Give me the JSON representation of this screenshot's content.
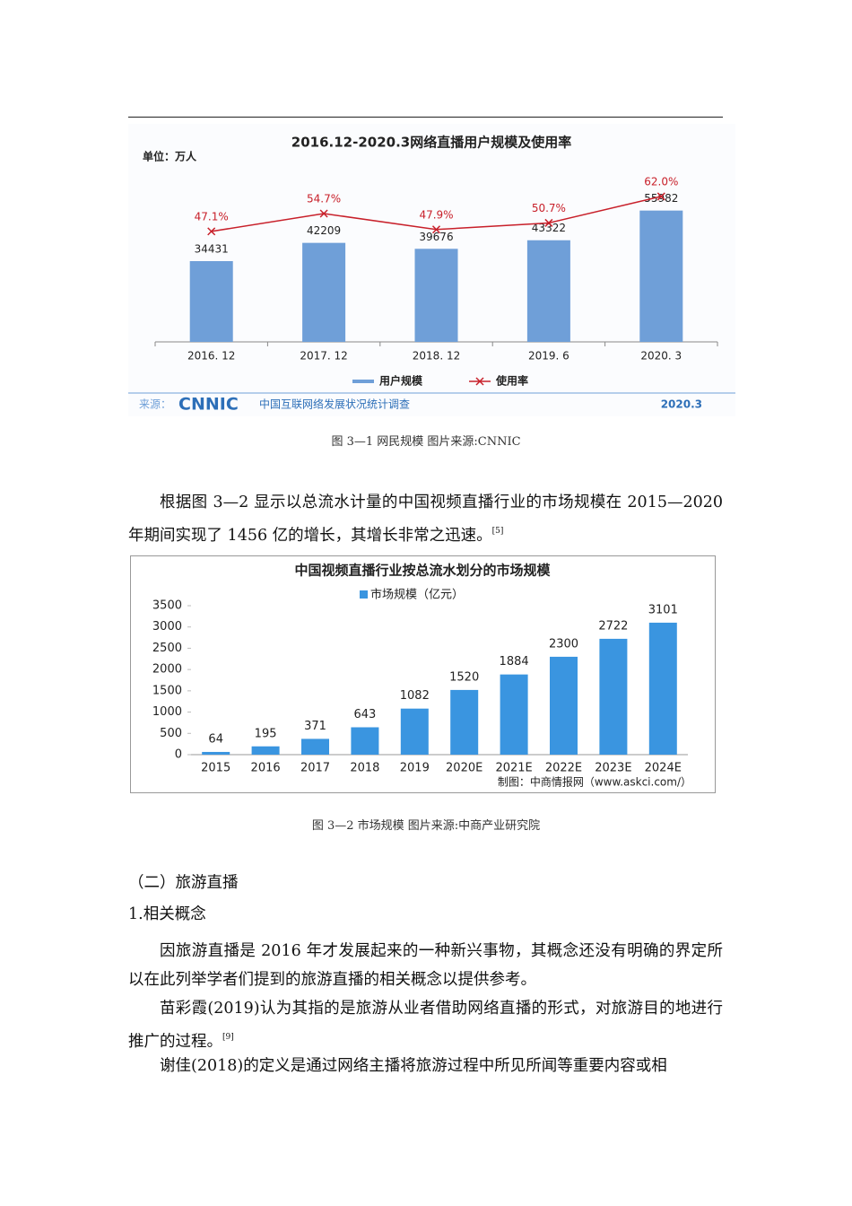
{
  "chart_data": [
    {
      "type": "bar",
      "title": "2016.12-2020.3网络直播用户规模及使用率",
      "unit_label": "单位：万人",
      "categories": [
        "2016. 12",
        "2017. 12",
        "2018. 12",
        "2019. 6",
        "2020. 3"
      ],
      "series": [
        {
          "name": "用户规模",
          "type": "bar",
          "color": "#6f9fd8",
          "values": [
            34431,
            42209,
            39676,
            43322,
            55982
          ]
        },
        {
          "name": "使用率",
          "type": "line",
          "axis": "y2",
          "color": "#c8202a",
          "values": [
            47.1,
            54.7,
            47.9,
            50.7,
            62.0
          ],
          "value_labels": [
            "47.1%",
            "54.7%",
            "47.9%",
            "50.7%",
            "62.0%"
          ]
        }
      ],
      "ylim": [
        0,
        70000
      ],
      "y2lim": [
        0,
        70
      ],
      "source": {
        "label": "来源：",
        "logo": "CNNIC",
        "text": "中国互联网络发展状况统计调查",
        "date": "2020.3"
      }
    },
    {
      "type": "bar",
      "title": "中国视频直播行业按总流水划分的市场规模",
      "categories": [
        "2015",
        "2016",
        "2017",
        "2018",
        "2019",
        "2020E",
        "2021E",
        "2022E",
        "2023E",
        "2024E"
      ],
      "series": [
        {
          "name": "市场规模（亿元）",
          "type": "bar",
          "color": "#3a95e0",
          "values": [
            64,
            195,
            371,
            643,
            1082,
            1520,
            1884,
            2300,
            2722,
            3101
          ]
        }
      ],
      "ylim": [
        0,
        3500
      ],
      "yticks": [
        0,
        500,
        1000,
        1500,
        2000,
        2500,
        3000,
        3500
      ],
      "credit": "制图：中商情报网（www.askci.com/）"
    }
  ],
  "captions": [
    "图 3—1 网民规模  图片来源:CNNIC",
    "图 3—2 市场规模  图片来源:中商产业研究院"
  ],
  "paragraphs": [
    {
      "text": "根据图 3—2 显示以总流水计量的中国视频直播行业的市场规模在 2015—2020 年期间实现了 1456 亿的增长，其增长非常之迅速。",
      "ref": "[5]"
    },
    {
      "text": "因旅游直播是 2016 年才发展起来的一种新兴事物，其概念还没有明确的界定所以在此列举学者们提到的旅游直播的相关概念以提供参考。"
    },
    {
      "text": "苗彩霞(2019)认为其指的是旅游从业者借助网络直播的形式，对旅游目的地进行推广的过程。",
      "ref": "[9]"
    },
    {
      "text": "谢佳(2018)的定义是通过网络主播将旅游过程中所见所闻等重要内容或相"
    }
  ],
  "section_heading": "（二）旅游直播",
  "subsection_heading": "1.相关概念"
}
